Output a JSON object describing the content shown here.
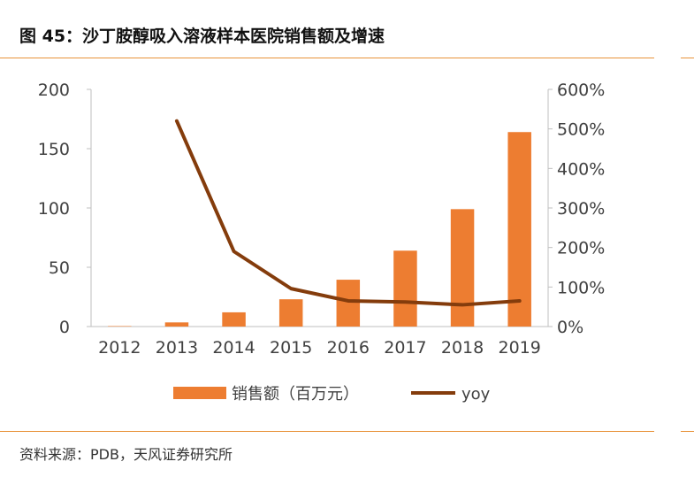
{
  "title": "图 45：沙丁胺醇吸入溶液样本医院销售额及增速",
  "source": "资料来源：PDB，天风证券研究所",
  "colors": {
    "bar": "#ED7D31",
    "line": "#843C0C",
    "rule": "#E8933A",
    "axis": "#BFBFBF"
  },
  "chart_data": {
    "type": "bar",
    "categories": [
      "2012",
      "2013",
      "2014",
      "2015",
      "2016",
      "2017",
      "2018",
      "2019"
    ],
    "series": [
      {
        "name": "销售额（百万元）",
        "type": "bar",
        "axis": "left",
        "values": [
          0.4,
          3.5,
          12,
          23,
          39.5,
          64,
          99,
          164
        ]
      },
      {
        "name": "yoy",
        "type": "line",
        "axis": "right",
        "values": [
          null,
          5.2,
          1.9,
          0.96,
          0.65,
          0.62,
          0.55,
          0.65
        ]
      }
    ],
    "ylim": [
      0,
      200
    ],
    "yticks": [
      "0",
      "50",
      "100",
      "150",
      "200"
    ],
    "y2lim": [
      0,
      6
    ],
    "y2ticks": [
      "0%",
      "100%",
      "200%",
      "300%",
      "400%",
      "500%",
      "600%"
    ],
    "legend_position": "bottom"
  }
}
